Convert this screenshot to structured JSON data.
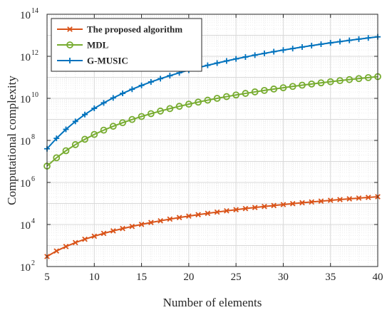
{
  "chart_data": {
    "type": "line",
    "title": "",
    "xlabel": "Number of elements",
    "ylabel": "Computational complexity",
    "x_scale": "linear",
    "y_scale": "log",
    "xlim": [
      5,
      40
    ],
    "ylim": [
      100,
      100000000000000
    ],
    "xticks": [
      5,
      10,
      15,
      20,
      25,
      30,
      35,
      40
    ],
    "yticks": [
      {
        "base": "10",
        "exp": "2",
        "value": 100
      },
      {
        "base": "10",
        "exp": "4",
        "value": 10000
      },
      {
        "base": "10",
        "exp": "6",
        "value": 1000000
      },
      {
        "base": "10",
        "exp": "8",
        "value": 100000000
      },
      {
        "base": "10",
        "exp": "10",
        "value": 10000000000
      },
      {
        "base": "10",
        "exp": "12",
        "value": 1000000000000
      },
      {
        "base": "10",
        "exp": "14",
        "value": 100000000000000
      }
    ],
    "grid": true,
    "minor_grid": true,
    "legend_position": "top-left",
    "x": [
      5,
      6,
      7,
      8,
      9,
      10,
      11,
      12,
      13,
      14,
      15,
      16,
      17,
      18,
      19,
      20,
      21,
      22,
      23,
      24,
      25,
      26,
      27,
      28,
      29,
      30,
      31,
      32,
      33,
      34,
      35,
      36,
      37,
      38,
      39,
      40
    ],
    "series": [
      {
        "name": "The proposed algorithm",
        "color": "#D95319",
        "marker": "x",
        "values": [
          300,
          549,
          897,
          1370,
          1990,
          2780,
          3770,
          4970,
          6400,
          8100,
          10100,
          12400,
          15000,
          18000,
          21400,
          25100,
          29300,
          33900,
          39000,
          44600,
          50600,
          57100,
          64200,
          71800,
          80000,
          88700,
          98000,
          108000,
          118000,
          129000,
          141000,
          153000,
          166000,
          180000,
          194000,
          209000
        ]
      },
      {
        "name": "MDL",
        "color": "#77AC30",
        "marker": "o",
        "values": [
          6000000,
          14900000,
          32300000,
          63000000,
          113000000,
          192000000,
          307000000,
          469000000,
          692000000,
          988000000,
          1370000000,
          1870000000,
          2490000000,
          3250000000,
          4180000000,
          5300000000,
          6630000000,
          8190000000,
          10000000000,
          12100000000,
          14500000000,
          17200000000,
          20300000000,
          23800000000,
          27700000000,
          32000000000,
          36900000000,
          42300000000,
          48200000000,
          54700000000,
          61800000000,
          69600000000,
          78000000000,
          87200000000,
          97100000000,
          108000000000
        ]
      },
      {
        "name": "G-MUSIC",
        "color": "#0072BD",
        "marker": "+",
        "values": [
          40000000,
          125000000,
          336000000,
          798000000,
          1700000000,
          3340000000,
          6100000000,
          10500000000,
          17200000000,
          27100000000,
          41100000000,
          60400000000,
          86200000000,
          120000000000,
          164000000000,
          219000000000,
          288000000000,
          373000000000,
          477000000000,
          602000000000,
          752000000000,
          929000000000,
          1140000000000,
          1380000000000,
          1660000000000,
          1980000000000,
          2340000000000,
          2760000000000,
          3230000000000,
          3760000000000,
          4350000000000,
          5010000000000,
          5740000000000,
          6560000000000,
          7460000000000,
          8440000000000
        ]
      }
    ]
  }
}
